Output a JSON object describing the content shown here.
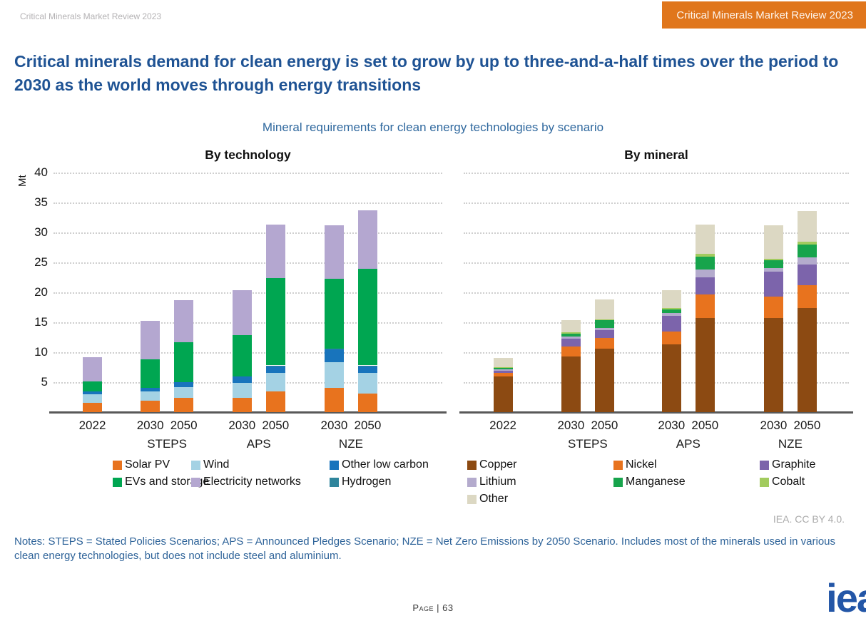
{
  "header": {
    "doc_label": "Critical Minerals Market Review 2023",
    "badge": "Critical Minerals Market Review 2023"
  },
  "title": "Critical minerals demand for clean energy is set to grow by up to three-and-a-half times over the period to 2030 as the world moves through energy transitions",
  "chart_subtitle": "Mineral requirements for clean energy technologies by scenario",
  "attribution": "IEA. CC BY 4.0.",
  "notes": "Notes: STEPS = Stated Policies Scenarios; APS = Announced Pledges Scenario; NZE = Net Zero Emissions by 2050 Scenario. Includes most of the minerals used in various clean energy technologies, but does not include steel and aluminium.",
  "footer": {
    "page_label": "Page | 63",
    "logo_text": "iea"
  },
  "chart_data": [
    {
      "id": "by_technology",
      "type": "bar",
      "stacked": true,
      "title": "By technology",
      "ylabel": "Mt",
      "unit": "Mt",
      "ylim": [
        0,
        40
      ],
      "ytick_step": 5,
      "grid": "horizontal-dotted",
      "legend_position": "bottom",
      "x_groups": [
        {
          "years": [
            "2022"
          ],
          "scenario": ""
        },
        {
          "years": [
            "2030",
            "2050"
          ],
          "scenario": "STEPS"
        },
        {
          "years": [
            "2030",
            "2050"
          ],
          "scenario": "APS"
        },
        {
          "years": [
            "2030",
            "2050"
          ],
          "scenario": "NZE"
        }
      ],
      "bar_labels": [
        "2022",
        "STEPS 2030",
        "STEPS 2050",
        "APS 2030",
        "APS 2050",
        "NZE 2030",
        "NZE 2050"
      ],
      "series": [
        {
          "name": "Solar PV",
          "color": "#e8731e",
          "values": [
            1.5,
            1.9,
            2.4,
            2.4,
            3.4,
            4.0,
            3.1
          ]
        },
        {
          "name": "Wind",
          "color": "#a4d2e4",
          "values": [
            1.5,
            1.5,
            1.8,
            2.5,
            3.1,
            4.3,
            3.4
          ]
        },
        {
          "name": "Other low carbon",
          "color": "#1874bc",
          "values": [
            0.4,
            0.7,
            0.8,
            1.1,
            1.2,
            2.2,
            1.2
          ]
        },
        {
          "name": "Hydrogen",
          "color": "#2f859c",
          "values": [
            0.0,
            0.0,
            0.0,
            0.0,
            0.1,
            0.1,
            0.1
          ]
        },
        {
          "name": "EVs and storage",
          "color": "#00a651",
          "values": [
            1.7,
            4.7,
            6.7,
            6.9,
            14.6,
            11.7,
            16.1
          ]
        },
        {
          "name": "Electricity networks",
          "color": "#b4a7d0",
          "values": [
            4.1,
            6.5,
            7.0,
            7.4,
            8.9,
            8.9,
            9.8
          ]
        }
      ],
      "totals": [
        9.2,
        15.3,
        18.7,
        20.3,
        31.3,
        31.2,
        33.7
      ],
      "legend_order": [
        "Solar PV",
        "Wind",
        "Other low carbon",
        "EVs and storage",
        "Electricity networks",
        "Hydrogen"
      ]
    },
    {
      "id": "by_mineral",
      "type": "bar",
      "stacked": true,
      "title": "By mineral",
      "ylabel": "",
      "unit": "Mt",
      "ylim": [
        0,
        40
      ],
      "ytick_step": 5,
      "grid": "horizontal-dotted",
      "legend_position": "bottom",
      "x_groups": [
        {
          "years": [
            "2022"
          ],
          "scenario": ""
        },
        {
          "years": [
            "2030",
            "2050"
          ],
          "scenario": "STEPS"
        },
        {
          "years": [
            "2030",
            "2050"
          ],
          "scenario": "APS"
        },
        {
          "years": [
            "2030",
            "2050"
          ],
          "scenario": "NZE"
        }
      ],
      "bar_labels": [
        "2022",
        "STEPS 2030",
        "STEPS 2050",
        "APS 2030",
        "APS 2050",
        "NZE 2030",
        "NZE 2050"
      ],
      "series": [
        {
          "name": "Copper",
          "color": "#8c4a12",
          "values": [
            6.0,
            9.3,
            10.6,
            11.3,
            15.7,
            15.7,
            17.4
          ]
        },
        {
          "name": "Nickel",
          "color": "#e8731e",
          "values": [
            0.5,
            1.6,
            1.8,
            2.2,
            3.9,
            3.6,
            3.8
          ]
        },
        {
          "name": "Graphite",
          "color": "#7c64ab",
          "values": [
            0.4,
            1.4,
            1.3,
            2.6,
            2.9,
            4.2,
            3.4
          ]
        },
        {
          "name": "Lithium",
          "color": "#b4abcd",
          "values": [
            0.2,
            0.3,
            0.4,
            0.4,
            1.3,
            0.6,
            1.2
          ]
        },
        {
          "name": "Manganese",
          "color": "#17a44c",
          "values": [
            0.3,
            0.5,
            1.2,
            0.7,
            2.2,
            1.3,
            2.2
          ]
        },
        {
          "name": "Cobalt",
          "color": "#a2cb5e",
          "values": [
            0.1,
            0.2,
            0.2,
            0.2,
            0.4,
            0.2,
            0.5
          ]
        },
        {
          "name": "Other",
          "color": "#dcd8c3",
          "values": [
            1.6,
            2.1,
            3.3,
            2.9,
            4.9,
            5.6,
            5.1
          ]
        }
      ],
      "totals": [
        9.1,
        15.4,
        18.8,
        20.3,
        31.3,
        31.2,
        33.7
      ],
      "legend_order": [
        "Copper",
        "Nickel",
        "Graphite",
        "Lithium",
        "Manganese",
        "Cobalt",
        "Other"
      ]
    }
  ]
}
